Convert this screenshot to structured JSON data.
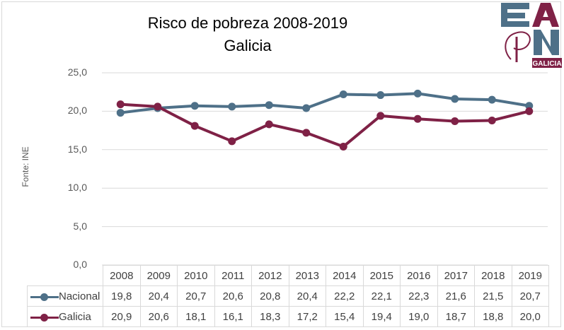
{
  "colors": {
    "nacional": "#4e7088",
    "galicia": "#7f2146",
    "grid": "#d9d9d9"
  },
  "logo": {
    "text": "EAPN",
    "sub": "GALICIA"
  },
  "source_label": "Fonte: INE",
  "chart_data": {
    "type": "line",
    "title": "Risco de pobreza 2008-2019",
    "subtitle": "Galicia",
    "xlabel": "",
    "ylabel": "",
    "ylim": [
      0,
      25
    ],
    "ytick_labels": [
      "25,0",
      "20,0",
      "15,0",
      "10,0",
      "5,0",
      "0,0"
    ],
    "yticks": [
      25,
      20,
      15,
      10,
      5,
      0
    ],
    "grid": true,
    "categories": [
      "2008",
      "2009",
      "2010",
      "2011",
      "2012",
      "2013",
      "2014",
      "2015",
      "2016",
      "2017",
      "2018",
      "2019"
    ],
    "series": [
      {
        "name": "Nacional",
        "values": [
          19.8,
          20.4,
          20.7,
          20.6,
          20.8,
          20.4,
          22.2,
          22.1,
          22.3,
          21.6,
          21.5,
          20.7
        ],
        "labels": [
          "19,8",
          "20,4",
          "20,7",
          "20,6",
          "20,8",
          "20,4",
          "22,2",
          "22,1",
          "22,3",
          "21,6",
          "21,5",
          "20,7"
        ]
      },
      {
        "name": "Galicia",
        "values": [
          20.9,
          20.6,
          18.1,
          16.1,
          18.3,
          17.2,
          15.4,
          19.4,
          19.0,
          18.7,
          18.8,
          20.0
        ],
        "labels": [
          "20,9",
          "20,6",
          "18,1",
          "16,1",
          "18,3",
          "17,2",
          "15,4",
          "19,4",
          "19,0",
          "18,7",
          "18,8",
          "20,0"
        ]
      }
    ],
    "legend": "data-table"
  }
}
